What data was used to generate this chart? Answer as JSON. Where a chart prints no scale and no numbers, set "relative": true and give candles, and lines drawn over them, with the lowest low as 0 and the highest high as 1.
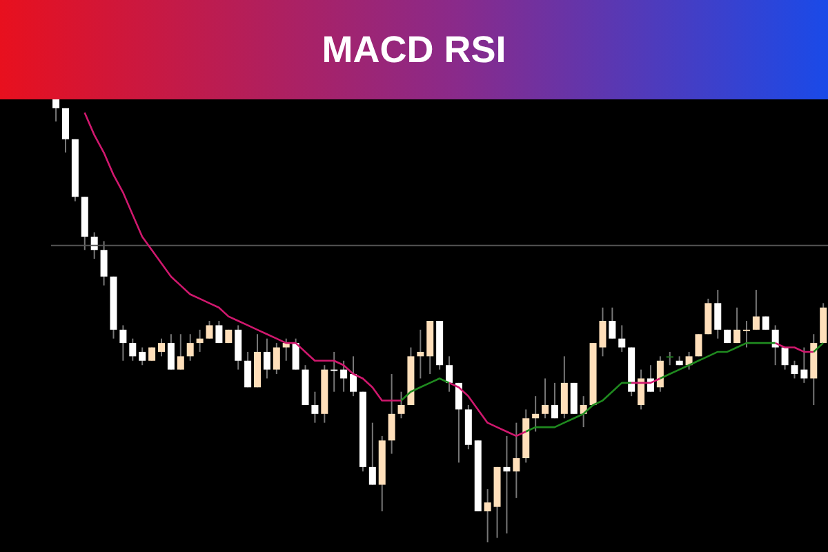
{
  "chart_data": {
    "type": "candlestick",
    "title": "MACD RSI",
    "relative": true,
    "categories": [
      null,
      null,
      null,
      null,
      null,
      null,
      null,
      null,
      null,
      null,
      null,
      null,
      null,
      null,
      null,
      null,
      null,
      null,
      null,
      null,
      null,
      null,
      null,
      null,
      null,
      null,
      null,
      null,
      null,
      null,
      null,
      null,
      null,
      null,
      null,
      null,
      null,
      null,
      null,
      null,
      null,
      null,
      null,
      null,
      null,
      null,
      null,
      null,
      null,
      null,
      null,
      null,
      null,
      null,
      null,
      null,
      null,
      null,
      null,
      null,
      null,
      null,
      null,
      null,
      null,
      null,
      null,
      null,
      null,
      null,
      null,
      null,
      null,
      null,
      null,
      null,
      null,
      null,
      null,
      null,
      null
    ],
    "ohlc": [
      [
        1.0,
        1.0,
        0.95,
        0.98
      ],
      [
        0.98,
        0.98,
        0.88,
        0.91
      ],
      [
        0.91,
        0.91,
        0.77,
        0.78
      ],
      [
        0.78,
        0.78,
        0.66,
        0.69
      ],
      [
        0.69,
        0.7,
        0.64,
        0.66
      ],
      [
        0.66,
        0.68,
        0.58,
        0.6
      ],
      [
        0.6,
        0.6,
        0.46,
        0.48
      ],
      [
        0.48,
        0.49,
        0.41,
        0.45
      ],
      [
        0.45,
        0.46,
        0.41,
        0.42
      ],
      [
        0.43,
        0.44,
        0.4,
        0.41
      ],
      [
        0.41,
        0.44,
        0.41,
        0.44
      ],
      [
        0.43,
        0.46,
        0.42,
        0.45
      ],
      [
        0.45,
        0.47,
        0.39,
        0.39
      ],
      [
        0.39,
        0.47,
        0.39,
        0.42
      ],
      [
        0.42,
        0.47,
        0.41,
        0.45
      ],
      [
        0.45,
        0.48,
        0.43,
        0.46
      ],
      [
        0.46,
        0.5,
        0.46,
        0.49
      ],
      [
        0.49,
        0.5,
        0.45,
        0.45
      ],
      [
        0.45,
        0.48,
        0.45,
        0.48
      ],
      [
        0.48,
        0.49,
        0.39,
        0.41
      ],
      [
        0.41,
        0.43,
        0.35,
        0.35
      ],
      [
        0.35,
        0.47,
        0.35,
        0.43
      ],
      [
        0.43,
        0.46,
        0.37,
        0.39
      ],
      [
        0.39,
        0.45,
        0.38,
        0.44
      ],
      [
        0.44,
        0.46,
        0.41,
        0.45
      ],
      [
        0.45,
        0.46,
        0.39,
        0.39
      ],
      [
        0.39,
        0.4,
        0.31,
        0.31
      ],
      [
        0.31,
        0.34,
        0.27,
        0.29
      ],
      [
        0.29,
        0.4,
        0.27,
        0.39
      ],
      [
        0.39,
        0.43,
        0.34,
        0.39
      ],
      [
        0.39,
        0.41,
        0.34,
        0.37
      ],
      [
        0.38,
        0.42,
        0.33,
        0.34
      ],
      [
        0.34,
        0.34,
        0.16,
        0.17
      ],
      [
        0.17,
        0.27,
        0.13,
        0.13
      ],
      [
        0.13,
        0.24,
        0.07,
        0.23
      ],
      [
        0.23,
        0.38,
        0.2,
        0.29
      ],
      [
        0.29,
        0.34,
        0.28,
        0.31
      ],
      [
        0.31,
        0.44,
        0.31,
        0.42
      ],
      [
        0.42,
        0.48,
        0.37,
        0.43
      ],
      [
        0.42,
        0.5,
        0.38,
        0.5
      ],
      [
        0.5,
        0.5,
        0.39,
        0.4
      ],
      [
        0.4,
        0.42,
        0.34,
        0.36
      ],
      [
        0.36,
        0.36,
        0.18,
        0.3
      ],
      [
        0.3,
        0.31,
        0.21,
        0.22
      ],
      [
        0.23,
        0.23,
        0.07,
        0.07
      ],
      [
        0.07,
        0.12,
        0.0,
        0.09
      ],
      [
        0.08,
        0.17,
        0.01,
        0.17
      ],
      [
        0.17,
        0.24,
        0.02,
        0.16
      ],
      [
        0.16,
        0.27,
        0.1,
        0.19
      ],
      [
        0.19,
        0.3,
        0.18,
        0.28
      ],
      [
        0.28,
        0.33,
        0.25,
        0.29
      ],
      [
        0.29,
        0.37,
        0.28,
        0.31
      ],
      [
        0.31,
        0.36,
        0.28,
        0.28
      ],
      [
        0.29,
        0.42,
        0.28,
        0.36
      ],
      [
        0.36,
        0.36,
        0.29,
        0.29
      ],
      [
        0.29,
        0.33,
        0.26,
        0.31
      ],
      [
        0.31,
        0.45,
        0.31,
        0.45
      ],
      [
        0.44,
        0.53,
        0.42,
        0.5
      ],
      [
        0.5,
        0.53,
        0.46,
        0.46
      ],
      [
        0.46,
        0.49,
        0.43,
        0.44
      ],
      [
        0.44,
        0.44,
        0.33,
        0.34
      ],
      [
        0.31,
        0.39,
        0.3,
        0.37
      ],
      [
        0.37,
        0.4,
        0.34,
        0.34
      ],
      [
        0.35,
        0.42,
        0.34,
        0.41
      ],
      [
        0.42,
        0.43,
        0.4,
        0.42
      ],
      [
        0.41,
        0.42,
        0.4,
        0.4
      ],
      [
        0.4,
        0.43,
        0.39,
        0.42
      ],
      [
        0.42,
        0.47,
        0.42,
        0.47
      ],
      [
        0.47,
        0.55,
        0.47,
        0.54
      ],
      [
        0.54,
        0.57,
        0.46,
        0.48
      ],
      [
        0.48,
        0.48,
        0.45,
        0.45
      ],
      [
        0.45,
        0.53,
        0.45,
        0.48
      ],
      [
        0.48,
        0.5,
        0.44,
        0.48
      ],
      [
        0.48,
        0.57,
        0.48,
        0.51
      ],
      [
        0.51,
        0.51,
        0.48,
        0.48
      ],
      [
        0.48,
        0.49,
        0.4,
        0.44
      ],
      [
        0.44,
        0.44,
        0.39,
        0.4
      ],
      [
        0.4,
        0.41,
        0.37,
        0.38
      ],
      [
        0.39,
        0.44,
        0.36,
        0.37
      ],
      [
        0.37,
        0.47,
        0.31,
        0.45
      ],
      [
        0.45,
        0.54,
        0.45,
        0.53
      ]
    ],
    "colors": [
      "#ffffff",
      "#ffffff",
      "#ffffff",
      "#ffffff",
      "#ffffff",
      "#ffffff",
      "#ffffff",
      "#ffffff",
      "#ffffff",
      "#ffffff",
      "#ffdfba",
      "#ffdfba",
      "#ffffff",
      "#ffdfba",
      "#ffdfba",
      "#ffdfba",
      "#ffdfba",
      "#ffffff",
      "#ffdfba",
      "#ffffff",
      "#ffffff",
      "#ffdfba",
      "#ffffff",
      "#ffdfba",
      "#ffdfba",
      "#ffffff",
      "#ffffff",
      "#ffffff",
      "#ffdfba",
      "#ffffff",
      "#ffffff",
      "#ffffff",
      "#ffffff",
      "#ffffff",
      "#ffdfba",
      "#ffdfba",
      "#ffdfba",
      "#ffdfba",
      "#ffdfba",
      "#ffdfba",
      "#ffffff",
      "#ffffff",
      "#ffffff",
      "#ffffff",
      "#ffffff",
      "#ffdfba",
      "#ffdfba",
      "#ffffff",
      "#ffdfba",
      "#ffdfba",
      "#ffdfba",
      "#ffdfba",
      "#ffffff",
      "#ffdfba",
      "#ffffff",
      "#ffdfba",
      "#ffdfba",
      "#ffdfba",
      "#ffffff",
      "#ffffff",
      "#ffffff",
      "#ffdfba",
      "#ffffff",
      "#ffdfba",
      "#1e7a1e",
      "#ffffff",
      "#ffdfba",
      "#ffdfba",
      "#ffdfba",
      "#ffffff",
      "#ffffff",
      "#ffdfba",
      "#ffdfba",
      "#ffdfba",
      "#ffffff",
      "#ffffff",
      "#ffffff",
      "#ffffff",
      "#ffffff",
      "#ffdfba",
      "#ffdfba"
    ],
    "series": [
      {
        "type": "line",
        "color": "#d0186e",
        "values": [
          null,
          null,
          null,
          0.97,
          0.92,
          0.88,
          0.83,
          0.79,
          0.74,
          0.69,
          0.66,
          0.63,
          0.6,
          0.58,
          0.56,
          0.55,
          0.54,
          0.53,
          0.51,
          0.5,
          0.49,
          0.48,
          0.47,
          0.46,
          0.45,
          0.45,
          0.43,
          0.41,
          0.41,
          0.41,
          0.4,
          0.38,
          0.37,
          0.35,
          0.32,
          0.32,
          0.32,
          null,
          null,
          null,
          null,
          0.36,
          0.35,
          0.33,
          0.3,
          0.27,
          0.26,
          0.25,
          0.24,
          0.25,
          null,
          null,
          null,
          null,
          null,
          null,
          null,
          null,
          null,
          null,
          0.36,
          0.36,
          0.36,
          0.37,
          null,
          null,
          null,
          null,
          null,
          null,
          null,
          null,
          null,
          null,
          null,
          0.45,
          0.44,
          0.44,
          0.43,
          0.43,
          null
        ]
      },
      {
        "type": "line",
        "color": "#1f8a1f",
        "values": [
          null,
          null,
          null,
          null,
          null,
          null,
          null,
          null,
          null,
          null,
          null,
          null,
          null,
          null,
          null,
          null,
          null,
          null,
          null,
          null,
          null,
          null,
          null,
          null,
          null,
          null,
          null,
          null,
          null,
          null,
          null,
          null,
          null,
          null,
          null,
          null,
          0.32,
          0.34,
          0.35,
          0.36,
          0.37,
          0.36,
          null,
          null,
          null,
          null,
          null,
          null,
          null,
          0.25,
          0.26,
          0.26,
          0.26,
          0.27,
          0.28,
          0.29,
          0.31,
          0.32,
          0.34,
          0.36,
          0.36,
          null,
          null,
          0.37,
          0.38,
          0.39,
          0.4,
          0.41,
          0.42,
          0.43,
          0.43,
          0.44,
          0.45,
          0.45,
          0.45,
          0.45,
          null,
          null,
          null,
          0.43,
          0.45
        ]
      }
    ],
    "ref_lines": [
      {
        "axis": "y",
        "value": 0.67,
        "color": "#555555"
      }
    ]
  }
}
